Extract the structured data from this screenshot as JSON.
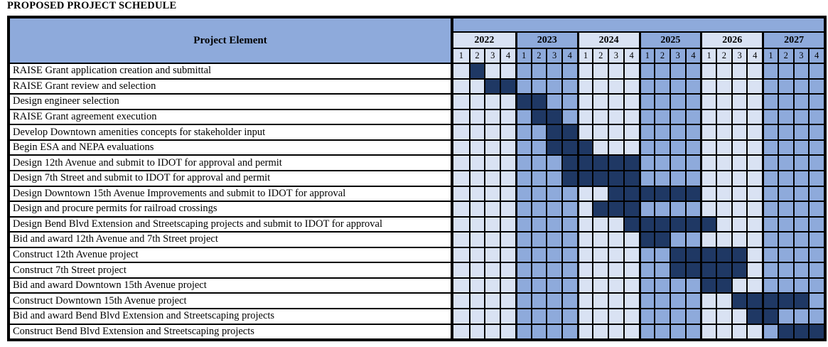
{
  "page": {
    "title": "PROPOSED PROJECT SCHEDULE"
  },
  "table": {
    "corner_header": "Project Element"
  },
  "colors": {
    "even_year_quarter_bg": "#D9E2F3",
    "odd_year_quarter_bg": "#8EAADB",
    "filled_cell_bg": "#1F3864",
    "header_bg": "#8EAADB",
    "border": "#000000",
    "row_bg": "#FFFFFF"
  },
  "chart_data": {
    "type": "gantt",
    "title": "PROPOSED PROJECT SCHEDULE",
    "column_header": "Project Element",
    "years": [
      "2022",
      "2023",
      "2024",
      "2025",
      "2026",
      "2027"
    ],
    "quarter_labels": [
      "1",
      "2",
      "3",
      "4"
    ],
    "legend": "Dark navy cells mark active quarters; quarter columns alternate light/blue by year",
    "tasks": [
      {
        "label": "RAISE Grant application creation and submittal",
        "filled_quarters": [
          2
        ],
        "start": "2022 Q2",
        "end": "2022 Q2"
      },
      {
        "label": "RAISE Grant review and selection",
        "filled_quarters": [
          3,
          4
        ],
        "start": "2022 Q3",
        "end": "2022 Q4"
      },
      {
        "label": "Design engineer selection",
        "filled_quarters": [
          5,
          6
        ],
        "start": "2023 Q1",
        "end": "2023 Q2"
      },
      {
        "label": "RAISE Grant agreement execution",
        "filled_quarters": [
          6,
          7
        ],
        "start": "2023 Q2",
        "end": "2023 Q3"
      },
      {
        "label": "Develop Downtown amenities concepts for stakeholder input",
        "filled_quarters": [
          7,
          8
        ],
        "start": "2023 Q3",
        "end": "2023 Q4"
      },
      {
        "label": "Begin ESA and NEPA evaluations",
        "filled_quarters": [
          7,
          8,
          9
        ],
        "start": "2023 Q3",
        "end": "2024 Q1"
      },
      {
        "label": "Design 12th Avenue and submit to IDOT for approval and permit",
        "filled_quarters": [
          8,
          9,
          10,
          11,
          12
        ],
        "start": "2023 Q4",
        "end": "2024 Q4"
      },
      {
        "label": "Design 7th Street and submit to IDOT for approval and permit",
        "filled_quarters": [
          8,
          9,
          10,
          11,
          12
        ],
        "start": "2023 Q4",
        "end": "2024 Q4"
      },
      {
        "label": "Design Downtown 15th Avenue Improvements and submit to IDOT for approval",
        "filled_quarters": [
          11,
          12,
          13,
          14,
          15,
          16
        ],
        "start": "2024 Q3",
        "end": "2025 Q4"
      },
      {
        "label": "Design and procure permits for railroad crossings",
        "filled_quarters": [
          10,
          11,
          12
        ],
        "start": "2024 Q2",
        "end": "2024 Q4"
      },
      {
        "label": "Design Bend Blvd Extension and Streetscaping projects and submit to IDOT for approval",
        "filled_quarters": [
          12,
          13,
          14,
          15,
          16,
          17
        ],
        "start": "2024 Q4",
        "end": "2026 Q1"
      },
      {
        "label": "Bid and award 12th Avenue and 7th Street project",
        "filled_quarters": [
          13,
          14
        ],
        "start": "2025 Q1",
        "end": "2025 Q2"
      },
      {
        "label": "Construct 12th Avenue project",
        "filled_quarters": [
          15,
          16,
          17,
          18,
          19
        ],
        "start": "2025 Q3",
        "end": "2026 Q3"
      },
      {
        "label": "Construct 7th Street project",
        "filled_quarters": [
          15,
          16,
          17,
          18,
          19
        ],
        "start": "2025 Q3",
        "end": "2026 Q3"
      },
      {
        "label": "Bid and award Downtown 15th Avenue project",
        "filled_quarters": [
          17,
          18
        ],
        "start": "2026 Q1",
        "end": "2026 Q2"
      },
      {
        "label": "Construct Downtown 15th Avenue project",
        "filled_quarters": [
          19,
          20,
          21,
          22,
          23
        ],
        "start": "2026 Q3",
        "end": "2027 Q3"
      },
      {
        "label": "Bid and award Bend Blvd Extension and Streetscaping projects",
        "filled_quarters": [
          20,
          21
        ],
        "start": "2026 Q4",
        "end": "2027 Q1"
      },
      {
        "label": "Construct Bend Blvd Extension and Streetscaping projects",
        "filled_quarters": [
          22,
          23,
          24
        ],
        "start": "2027 Q2",
        "end": "2027 Q4"
      }
    ]
  }
}
